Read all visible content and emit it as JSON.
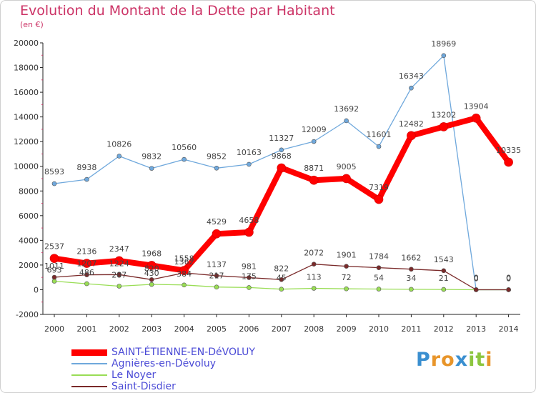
{
  "title": "Evolution du Montant de la Dette par Habitant",
  "subtitle": "(en €)",
  "logo": {
    "text": "Proxiti",
    "letters": [
      {
        "ch": "P",
        "color": "#3a8fd0"
      },
      {
        "ch": "r",
        "color": "#e8952a"
      },
      {
        "ch": "o",
        "color": "#e8952a"
      },
      {
        "ch": "x",
        "color": "#3a8fd0"
      },
      {
        "ch": "i",
        "color": "#8cc63f"
      },
      {
        "ch": "t",
        "color": "#8cc63f"
      },
      {
        "ch": "i",
        "color": "#e8952a"
      }
    ]
  },
  "chart_data": {
    "type": "line",
    "title": "Evolution du Montant de la Dette par Habitant",
    "subtitle": "(en €)",
    "xlabel": "",
    "ylabel": "",
    "x": [
      "2000",
      "2001",
      "2002",
      "2003",
      "2004",
      "2005",
      "2006",
      "2007",
      "2008",
      "2009",
      "2010",
      "2011",
      "2012",
      "2013",
      "2014"
    ],
    "ylim": [
      -2000,
      20000
    ],
    "yticks": [
      "-2000",
      "0",
      "2000",
      "4000",
      "6000",
      "8000",
      "10000",
      "12000",
      "14000",
      "16000",
      "18000",
      "20000"
    ],
    "grid": false,
    "legend_position": "bottom-left",
    "series": [
      {
        "name": "SAINT-ÉTIENNE-EN-DéVOLUY",
        "color": "#ff0000",
        "values": [
          2537,
          2136,
          2347,
          1968,
          1558,
          4529,
          4658,
          9868,
          8871,
          9005,
          7319,
          12482,
          13202,
          13904,
          10335
        ],
        "labels": [
          "2537",
          "2136",
          "2347",
          "1968",
          "1558",
          "4529",
          "4658",
          "9868",
          "8871",
          "9005",
          "7319",
          "12482",
          "13202",
          "13904",
          "10335"
        ]
      },
      {
        "name": "Agnières-en-Dévoluy",
        "color": "#6fa8dc",
        "values": [
          8593,
          8938,
          10826,
          9832,
          10560,
          9852,
          10163,
          11327,
          12009,
          13692,
          11601,
          16343,
          18969,
          0,
          0
        ],
        "labels": [
          "8593",
          "8938",
          "10826",
          "9832",
          "10560",
          "9852",
          "10163",
          "11327",
          "12009",
          "13692",
          "11601",
          "16343",
          "18969",
          "0",
          "0"
        ]
      },
      {
        "name": "Le Noyer",
        "color": "#99dd55",
        "values": [
          693,
          486,
          287,
          430,
          384,
          217,
          175,
          45,
          113,
          72,
          54,
          34,
          21,
          0,
          0
        ],
        "labels": [
          "693",
          "486",
          "287",
          "430",
          "384",
          "217",
          "175",
          "45",
          "113",
          "72",
          "54",
          "34",
          "21",
          "0",
          "0"
        ]
      },
      {
        "name": "Saint-Disdier",
        "color": "#7a2a2a",
        "values": [
          1011,
          1207,
          1224,
          820,
          1362,
          1137,
          981,
          822,
          2072,
          1901,
          1784,
          1662,
          1543,
          0,
          0
        ],
        "labels": [
          "1011",
          "1207",
          "1224",
          "820",
          "1362",
          "1137",
          "981",
          "822",
          "2072",
          "1901",
          "1784",
          "1662",
          "1543",
          "0",
          "0"
        ]
      }
    ]
  }
}
